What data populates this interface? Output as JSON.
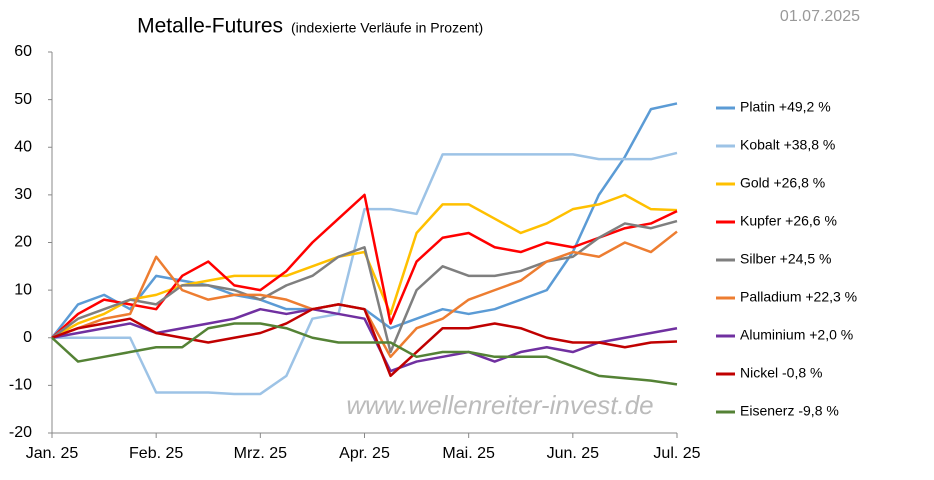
{
  "chart_data": {
    "type": "line",
    "title": "Metalle-Futures",
    "subtitle": "(indexierte Verläufe in Prozent)",
    "date": "01.07.2025",
    "watermark": "www.wellenreiter-invest.de",
    "categories": [
      "Jan. 25",
      null,
      null,
      null,
      "Feb. 25",
      null,
      null,
      null,
      "Mrz. 25",
      null,
      null,
      null,
      "Apr. 25",
      null,
      null,
      null,
      "Mai. 25",
      null,
      null,
      null,
      "Jun. 25",
      null,
      null,
      null,
      "Jul. 25"
    ],
    "ylim": [
      -20,
      60
    ],
    "yticks": [
      -20,
      -10,
      0,
      10,
      20,
      30,
      40,
      50,
      60
    ],
    "grid": false,
    "legend": "right",
    "series": [
      {
        "name": "Platin +49,2 %",
        "color": "#5b9bd5",
        "values": [
          0,
          7,
          9,
          6,
          13,
          12,
          11,
          9,
          8,
          6,
          6,
          7,
          6,
          2,
          4,
          6,
          5,
          6,
          8,
          10,
          18,
          30,
          38,
          48,
          49.2
        ]
      },
      {
        "name": "Kobalt +38,8 %",
        "color": "#9dc3e6",
        "values": [
          0,
          0,
          0,
          0,
          -11.5,
          -11.5,
          -11.5,
          -11.8,
          -11.8,
          -8,
          4,
          5,
          27,
          27,
          26,
          38.5,
          38.5,
          38.5,
          38.5,
          38.5,
          38.5,
          37.5,
          37.5,
          37.5,
          38.8
        ]
      },
      {
        "name": "Gold +26,8 %",
        "color": "#ffc000",
        "values": [
          0,
          3,
          5,
          8,
          9,
          11,
          12,
          13,
          13,
          13,
          15,
          17,
          18,
          5,
          22,
          28,
          28,
          25,
          22,
          24,
          27,
          28,
          30,
          27,
          26.8
        ]
      },
      {
        "name": "Kupfer +26,6 %",
        "color": "#ff0000",
        "values": [
          0,
          5,
          8,
          7,
          6,
          13,
          16,
          11,
          10,
          14,
          20,
          25,
          30,
          3,
          16,
          21,
          22,
          19,
          18,
          20,
          19,
          21,
          23,
          24,
          26.6
        ]
      },
      {
        "name": "Silber +24,5 %",
        "color": "#7f7f7f",
        "values": [
          0,
          4,
          6,
          8,
          7,
          11,
          11,
          10,
          8,
          11,
          13,
          17,
          19,
          -3,
          10,
          15,
          13,
          13,
          14,
          16,
          17,
          21,
          24,
          23,
          24.5
        ]
      },
      {
        "name": "Palladium +22,3 %",
        "color": "#ed7d31",
        "values": [
          0,
          2,
          4,
          5,
          17,
          10,
          8,
          9,
          9,
          8,
          6,
          7,
          6,
          -4,
          2,
          4,
          8,
          10,
          12,
          16,
          18,
          17,
          20,
          18,
          22.3
        ]
      },
      {
        "name": "Aluminium +2,0 %",
        "color": "#7030a0",
        "values": [
          0,
          1,
          2,
          3,
          1,
          2,
          3,
          4,
          6,
          5,
          6,
          5,
          4,
          -7,
          -5,
          -4,
          -3,
          -5,
          -3,
          -2,
          -3,
          -1,
          0,
          1,
          2.0
        ]
      },
      {
        "name": "Nickel -0,8 %",
        "color": "#c00000",
        "values": [
          0,
          2,
          3,
          4,
          1,
          0,
          -1,
          0,
          1,
          3,
          6,
          7,
          6,
          -8,
          -3,
          2,
          2,
          3,
          2,
          0,
          -1,
          -1,
          -2,
          -1,
          -0.8
        ]
      },
      {
        "name": "Eisenerz -9,8 %",
        "color": "#548235",
        "values": [
          0,
          -5,
          -4,
          -3,
          -2,
          -2,
          2,
          3,
          3,
          2,
          0,
          -1,
          -1,
          -1,
          -4,
          -3,
          -3,
          -4,
          -4,
          -4,
          -6,
          -8,
          -8.5,
          -9,
          -9.8
        ]
      }
    ]
  }
}
